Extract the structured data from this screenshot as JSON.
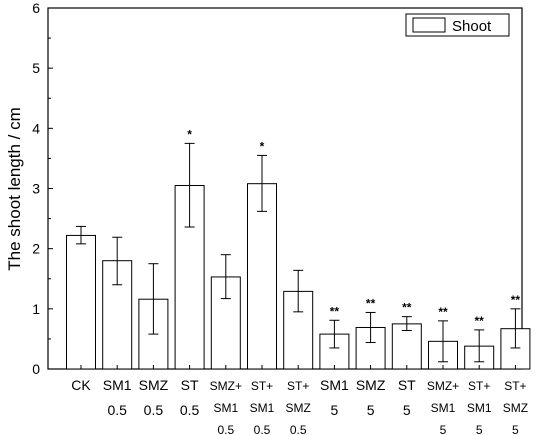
{
  "chart_data": {
    "type": "bar",
    "ylabel": "The shoot length / cm",
    "xlabel": "",
    "ylim": [
      0,
      6
    ],
    "yticks": [
      "0",
      "1",
      "2",
      "3",
      "4",
      "5",
      "6"
    ],
    "legend": {
      "label": "Shoot",
      "position": "top-right"
    },
    "categories": [
      [
        "CK"
      ],
      [
        "SM1",
        "0.5"
      ],
      [
        "SMZ",
        "0.5"
      ],
      [
        "ST",
        "0.5"
      ],
      [
        "SMZ+",
        "SM1",
        "0.5"
      ],
      [
        "ST+",
        "SM1",
        "0.5"
      ],
      [
        "ST+",
        "SMZ",
        "0.5"
      ],
      [
        "SM1",
        "5"
      ],
      [
        "SMZ",
        "5"
      ],
      [
        "ST",
        "5"
      ],
      [
        "SMZ+",
        "SM1",
        "5"
      ],
      [
        "ST+",
        "SM1",
        "5"
      ],
      [
        "ST+",
        "SMZ",
        "5"
      ]
    ],
    "series": [
      {
        "name": "Shoot",
        "values": [
          2.22,
          1.8,
          1.16,
          3.05,
          1.53,
          3.08,
          1.29,
          0.58,
          0.69,
          0.75,
          0.46,
          0.38,
          0.67
        ],
        "error_low": [
          2.08,
          1.4,
          0.58,
          2.36,
          1.17,
          2.62,
          0.95,
          0.35,
          0.44,
          0.64,
          0.12,
          0.12,
          0.35
        ],
        "error_high": [
          2.37,
          2.19,
          1.75,
          3.75,
          1.9,
          3.55,
          1.64,
          0.81,
          0.94,
          0.87,
          0.8,
          0.65,
          1.0
        ]
      }
    ],
    "significance": [
      "",
      "",
      "",
      "*",
      "",
      "*",
      "",
      "**",
      "**",
      "**",
      "**",
      "**",
      "**"
    ]
  }
}
